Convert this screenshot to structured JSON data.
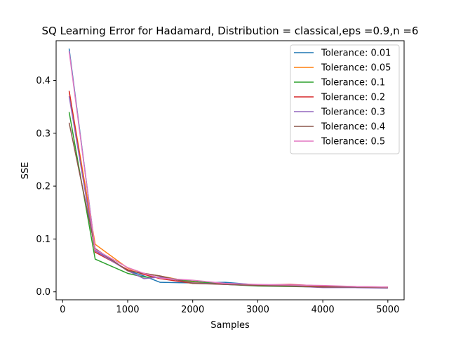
{
  "chart_data": {
    "type": "line",
    "title": "SQ Learning Error for Hadamard, Distribution = classical,eps =0.9,n =6",
    "xlabel": "Samples",
    "ylabel": "SSE",
    "xlim": [
      -100,
      5250
    ],
    "ylim": [
      -0.015,
      0.475
    ],
    "xticks": [
      0,
      1000,
      2000,
      3000,
      4000,
      5000
    ],
    "xtick_labels": [
      "0",
      "1000",
      "2000",
      "3000",
      "4000",
      "5000"
    ],
    "yticks": [
      0.0,
      0.1,
      0.2,
      0.3,
      0.4
    ],
    "ytick_labels": [
      "0.0",
      "0.1",
      "0.2",
      "0.3",
      "0.4"
    ],
    "grid": false,
    "legend_position": "top-right",
    "x": [
      100,
      500,
      1000,
      1250,
      1500,
      2000,
      2500,
      3000,
      3500,
      4000,
      4500,
      5000
    ],
    "series": [
      {
        "name": "Tolerance: 0.01",
        "color": "#1f77b4",
        "values": [
          0.46,
          0.08,
          0.04,
          0.03,
          0.018,
          0.017,
          0.018,
          0.013,
          0.012,
          0.01,
          0.009,
          0.008
        ]
      },
      {
        "name": "Tolerance: 0.05",
        "color": "#ff7f0e",
        "values": [
          0.38,
          0.09,
          0.045,
          0.035,
          0.03,
          0.018,
          0.015,
          0.012,
          0.011,
          0.01,
          0.009,
          0.008
        ]
      },
      {
        "name": "Tolerance: 0.1",
        "color": "#2ca02c",
        "values": [
          0.34,
          0.062,
          0.035,
          0.028,
          0.028,
          0.02,
          0.014,
          0.011,
          0.01,
          0.009,
          0.009,
          0.008
        ]
      },
      {
        "name": "Tolerance: 0.2",
        "color": "#d62728",
        "values": [
          0.38,
          0.075,
          0.042,
          0.033,
          0.025,
          0.016,
          0.015,
          0.013,
          0.014,
          0.011,
          0.01,
          0.009
        ]
      },
      {
        "name": "Tolerance: 0.3",
        "color": "#9467bd",
        "values": [
          0.37,
          0.078,
          0.04,
          0.025,
          0.028,
          0.017,
          0.014,
          0.012,
          0.011,
          0.008,
          0.008,
          0.007
        ]
      },
      {
        "name": "Tolerance: 0.4",
        "color": "#8c564b",
        "values": [
          0.32,
          0.082,
          0.04,
          0.035,
          0.03,
          0.016,
          0.014,
          0.012,
          0.011,
          0.009,
          0.009,
          0.008
        ]
      },
      {
        "name": "Tolerance: 0.5",
        "color": "#e377c2",
        "values": [
          0.455,
          0.08,
          0.046,
          0.035,
          0.026,
          0.022,
          0.016,
          0.014,
          0.013,
          0.012,
          0.01,
          0.009
        ]
      }
    ]
  }
}
